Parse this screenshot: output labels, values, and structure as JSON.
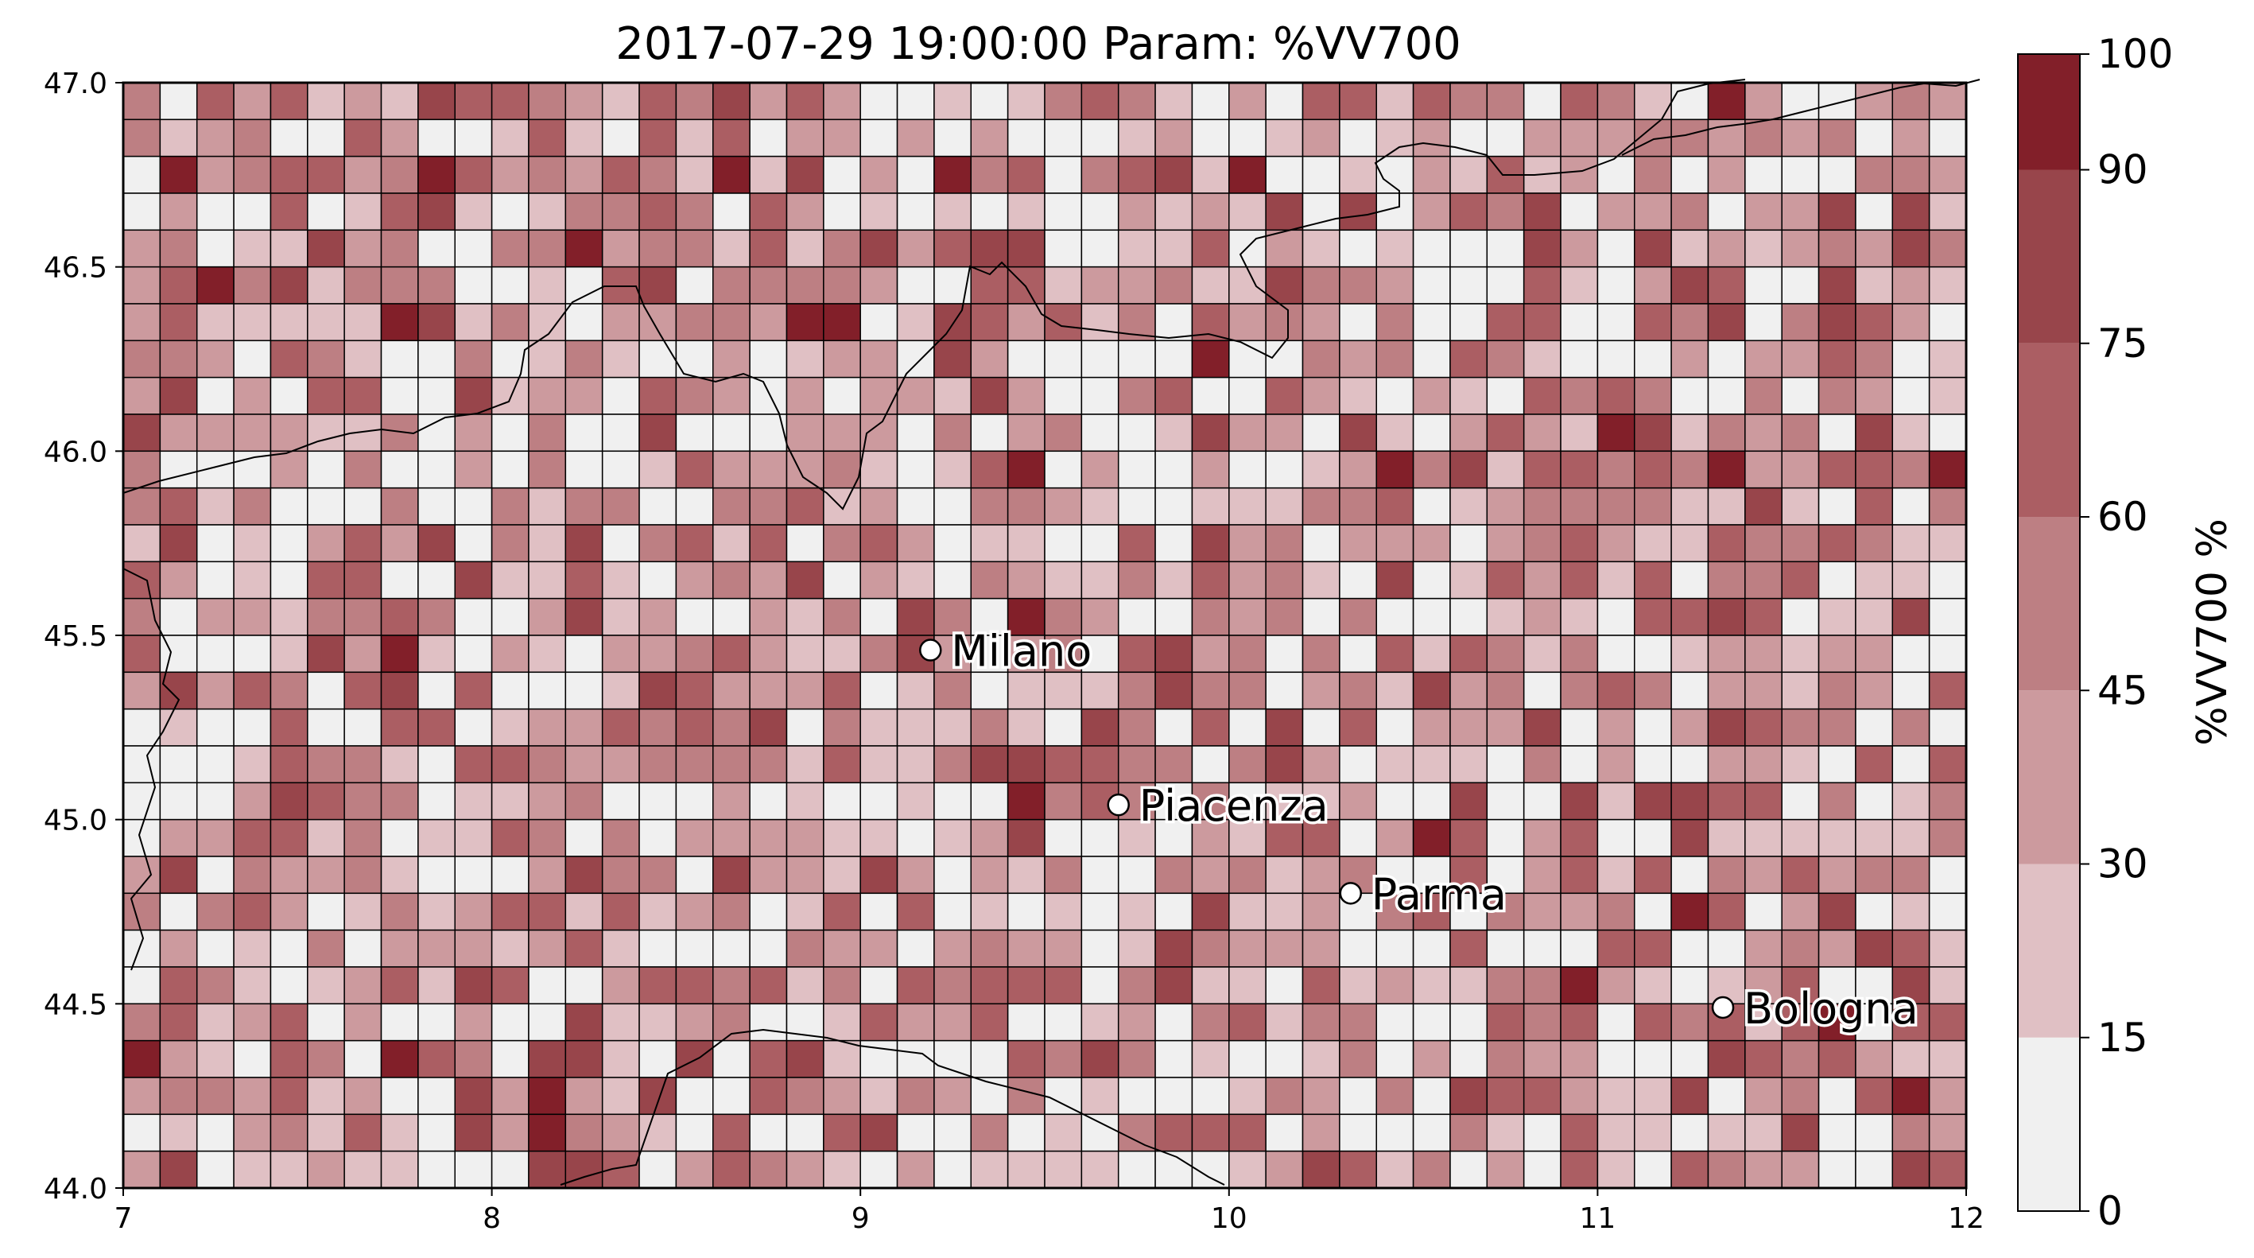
{
  "title": "2017-07-29 19:00:00 Param: %VV700",
  "map": {
    "x_ticks": [
      "7",
      "8",
      "9",
      "10",
      "11",
      "12"
    ],
    "y_ticks": [
      "44.0",
      "44.5",
      "45.0",
      "45.5",
      "46.0",
      "46.5",
      "47.0"
    ],
    "lon_range": [
      7,
      12
    ],
    "lat_range": [
      44,
      47
    ],
    "grid_cols": 50,
    "grid_rows": 30,
    "cities": [
      {
        "name": "Milano",
        "lon": 9.19,
        "lat": 45.46
      },
      {
        "name": "Piacenza",
        "lon": 9.7,
        "lat": 45.04
      },
      {
        "name": "Parma",
        "lon": 10.33,
        "lat": 44.8
      },
      {
        "name": "Bologna",
        "lon": 11.34,
        "lat": 44.49
      }
    ]
  },
  "colorbar": {
    "label": "%VV700 %",
    "ticks": [
      "0",
      "15",
      "30",
      "45",
      "60",
      "75",
      "90",
      "100"
    ],
    "bounds": [
      0,
      15,
      30,
      45,
      60,
      75,
      90,
      100
    ],
    "colors": [
      "#f0f0f0",
      "#e0c0c4",
      "#cc9a9e",
      "#bd7f83",
      "#ab5e63",
      "#98454b",
      "#821f29",
      "#700000"
    ]
  }
}
